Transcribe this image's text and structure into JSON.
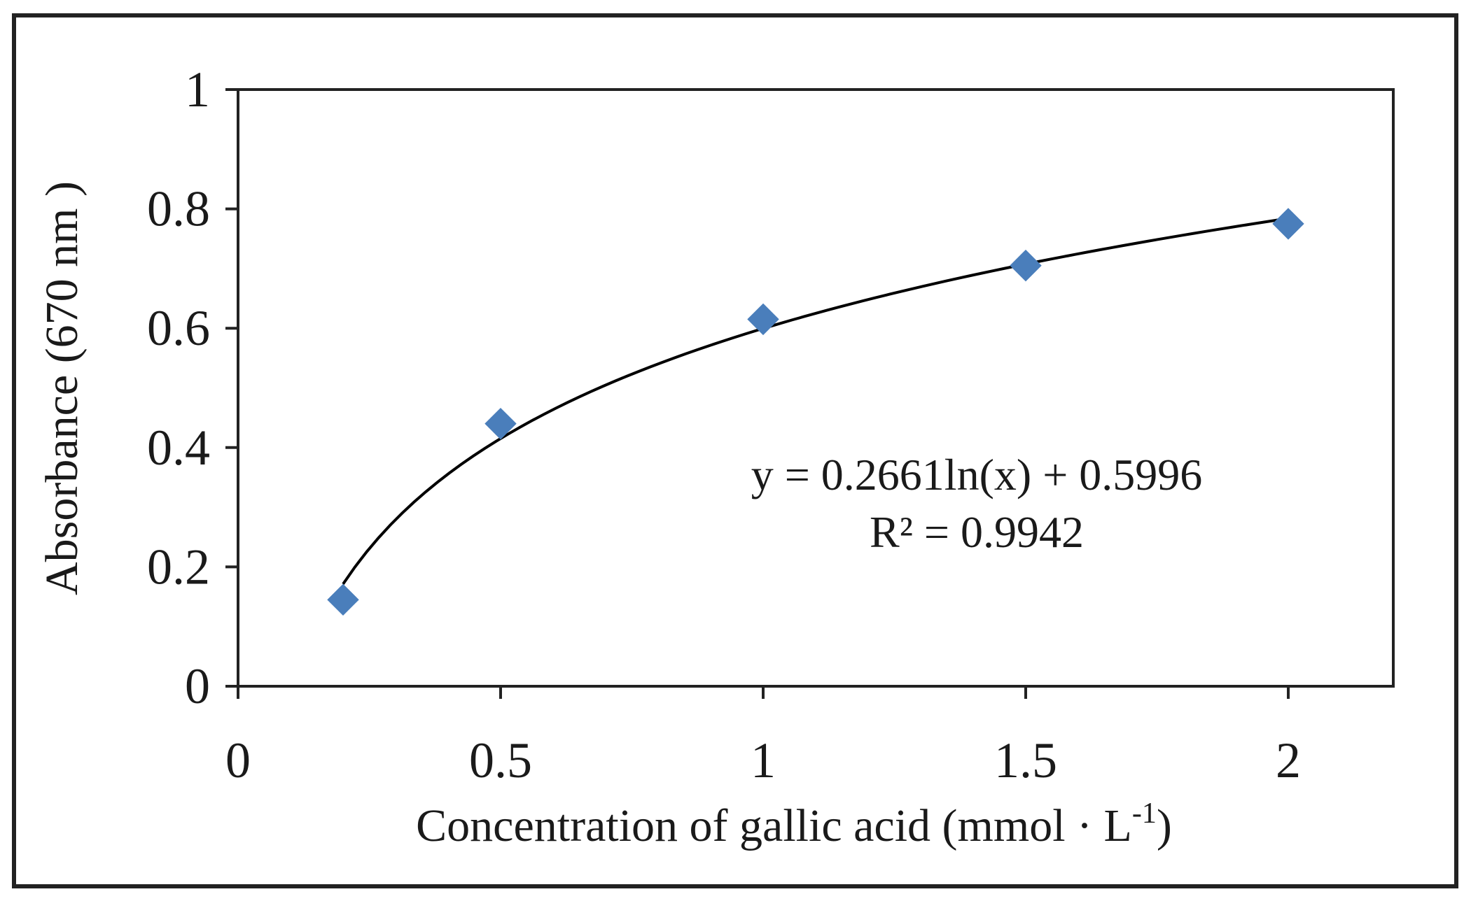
{
  "chart_data": {
    "type": "scatter",
    "xlabel": "Concentration of gallic acid (mmol · L",
    "xlabel_sup": "-1",
    "xlabel_end": ")",
    "ylabel": "Absorbance (670 nm )",
    "xlim": [
      0,
      2.2
    ],
    "ylim": [
      0,
      1
    ],
    "x_ticks": [
      0,
      0.5,
      1,
      1.5,
      2
    ],
    "x_tick_labels": [
      "0",
      "0.5",
      "1",
      "1.5",
      "2"
    ],
    "y_ticks": [
      0,
      0.2,
      0.4,
      0.6,
      0.8,
      1
    ],
    "y_tick_labels": [
      "0",
      "0.2",
      "0.4",
      "0.6",
      "0.8",
      "1"
    ],
    "series": [
      {
        "x": [
          0.2,
          0.5,
          1,
          1.5,
          2
        ],
        "y": [
          0.145,
          0.44,
          0.615,
          0.705,
          0.775
        ],
        "color": "#4a7ebb",
        "marker": "diamond"
      }
    ],
    "trendline": {
      "type": "logarithmic",
      "a": 0.2661,
      "b": 0.5996,
      "x_range": [
        0.2,
        2
      ],
      "color": "#000000",
      "equation": "y = 0.2661ln(x) + 0.5996",
      "r_squared": "R² = 0.9942"
    },
    "grid": false,
    "legend": "none"
  }
}
